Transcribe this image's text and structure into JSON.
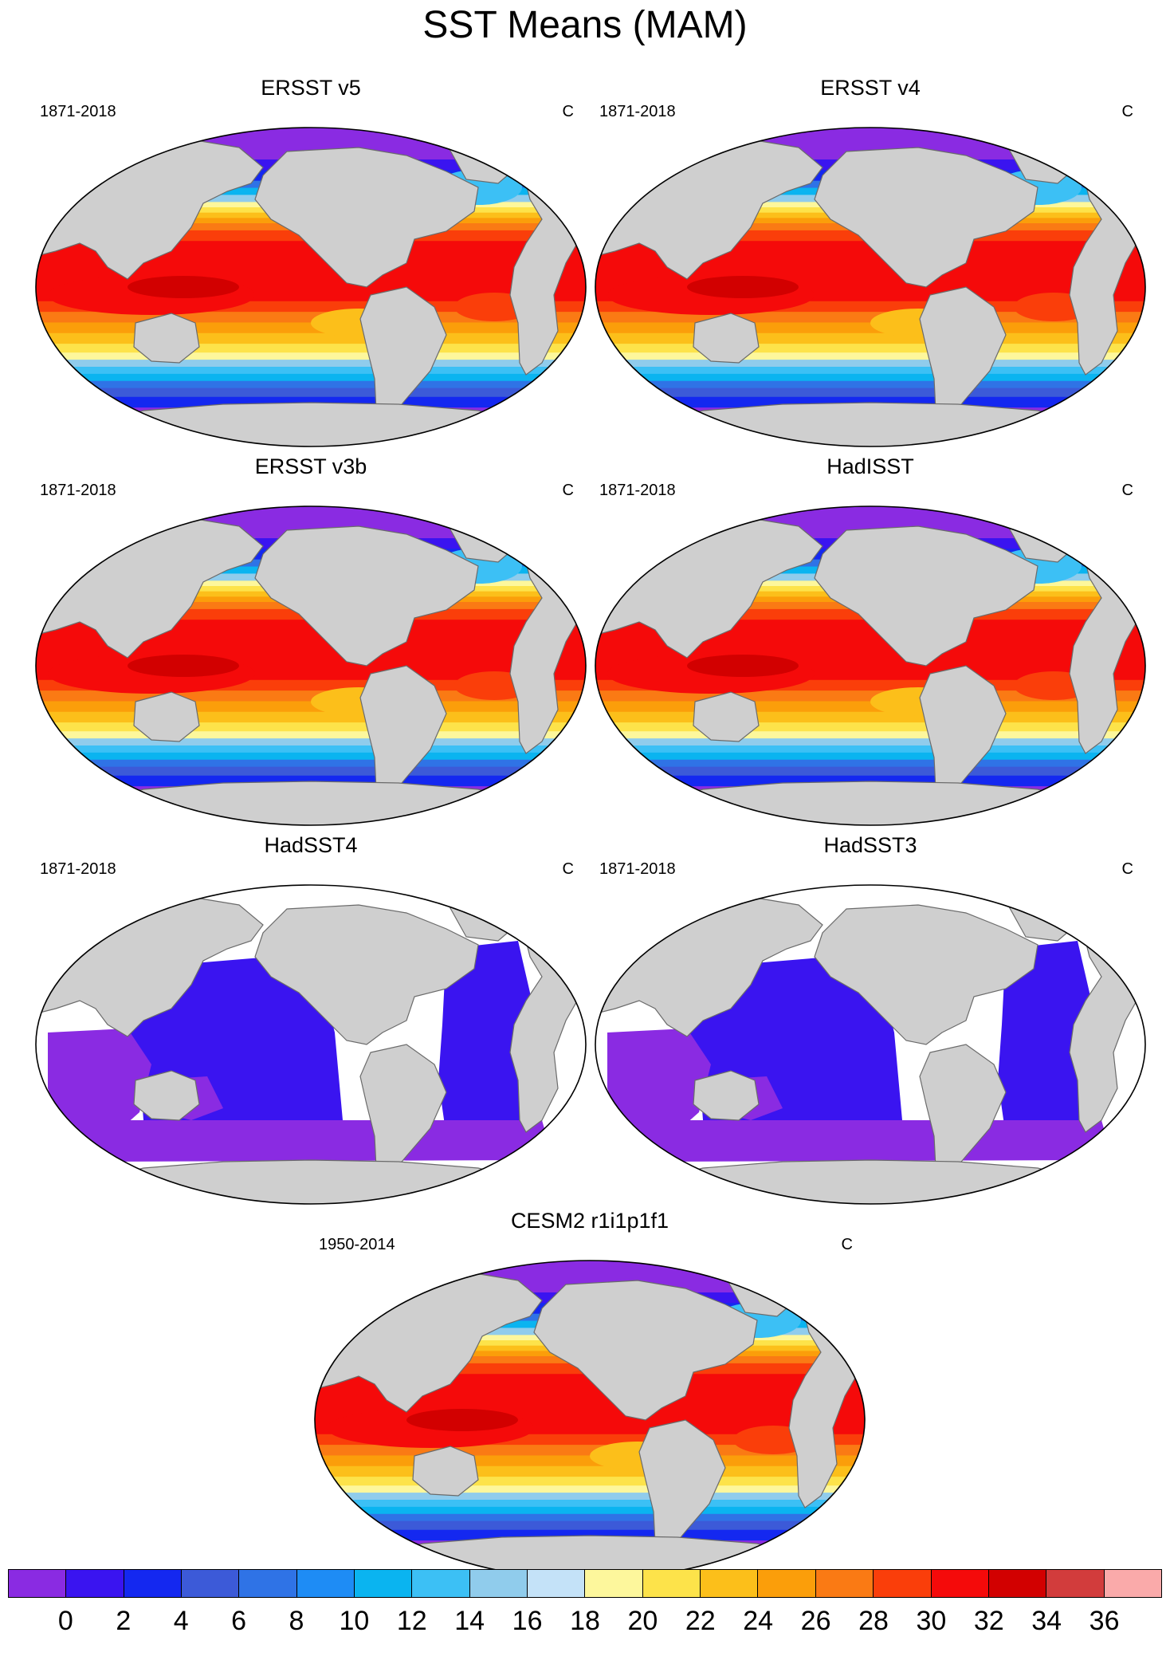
{
  "title": "SST Means (MAM)",
  "unit_label": "C",
  "colors": {
    "land": "#cfcfcf",
    "coast": "#6b6b6b",
    "missing": "#ffffff"
  },
  "panels": [
    {
      "title": "ERSST v5",
      "period": "1871-2018",
      "unit": "C",
      "style": "full"
    },
    {
      "title": "ERSST v4",
      "period": "1871-2018",
      "unit": "C",
      "style": "full"
    },
    {
      "title": "ERSST v3b",
      "period": "1871-2018",
      "unit": "C",
      "style": "full"
    },
    {
      "title": "HadISST",
      "period": "1871-2018",
      "unit": "C",
      "style": "full"
    },
    {
      "title": "HadSST4",
      "period": "1871-2018",
      "unit": "C",
      "style": "blue"
    },
    {
      "title": "HadSST3",
      "period": "1871-2018",
      "unit": "C",
      "style": "blue"
    },
    {
      "title": "CESM2 r1i1p1f1",
      "period": "1950-2014",
      "unit": "C",
      "style": "full"
    }
  ],
  "colorbar": {
    "labels": [
      "0",
      "2",
      "4",
      "6",
      "8",
      "10",
      "12",
      "14",
      "16",
      "18",
      "20",
      "22",
      "24",
      "26",
      "28",
      "30",
      "32",
      "34",
      "36"
    ],
    "colors": [
      "#8a2be2",
      "#3a14f0",
      "#1428f0",
      "#3c5ad8",
      "#2f73e6",
      "#1e8cf5",
      "#0ab4f0",
      "#3cc0f5",
      "#90ccec",
      "#c4e2f8",
      "#fdf79c",
      "#fde34a",
      "#fcbf1a",
      "#fb9e0a",
      "#fa7a14",
      "#fa3e0a",
      "#f50a0a",
      "#d20000",
      "#d23c3c",
      "#faaaaa"
    ]
  }
}
